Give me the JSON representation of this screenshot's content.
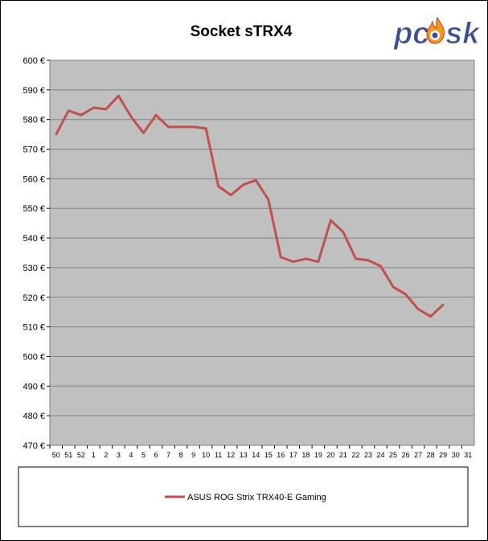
{
  "chart_data": {
    "type": "line",
    "title": "Socket sTRX4",
    "xlabel": "",
    "ylabel": "",
    "categories": [
      "50",
      "51",
      "52",
      "1",
      "2",
      "3",
      "4",
      "5",
      "6",
      "7",
      "8",
      "9",
      "10",
      "11",
      "12",
      "13",
      "14",
      "15",
      "16",
      "17",
      "18",
      "19",
      "20",
      "21",
      "22",
      "23",
      "24",
      "25",
      "26",
      "27",
      "28",
      "29",
      "30",
      "31"
    ],
    "y_tick_labels": [
      "470 €",
      "480 €",
      "490 €",
      "500 €",
      "510 €",
      "520 €",
      "530 €",
      "540 €",
      "550 €",
      "560 €",
      "570 €",
      "580 €",
      "590 €",
      "600 €"
    ],
    "ylim": [
      470,
      600
    ],
    "y_step": 10,
    "grid": true,
    "legend_position": "bottom",
    "series": [
      {
        "name": "ASUS ROG Strix TRX40-E Gaming",
        "color": "#c0504d",
        "values": [
          575,
          583,
          581.5,
          584,
          583.5,
          588,
          581,
          575.5,
          581.5,
          577.5,
          577.5,
          577.5,
          577,
          557.5,
          554.5,
          558,
          559.5,
          553,
          533.5,
          532,
          533,
          532,
          546,
          542,
          533,
          532.5,
          530.5,
          523.5,
          521,
          516,
          513.5,
          517.5,
          null,
          null
        ]
      }
    ]
  },
  "logo": {
    "text_left": "pc",
    "text_right": "sk",
    "icon": "flame-icon"
  },
  "colors": {
    "plot_background": "#c0c0c0",
    "legend_border": "#000000",
    "logo_blue": "#3b4e9c",
    "logo_flame": "#f39a1e"
  }
}
